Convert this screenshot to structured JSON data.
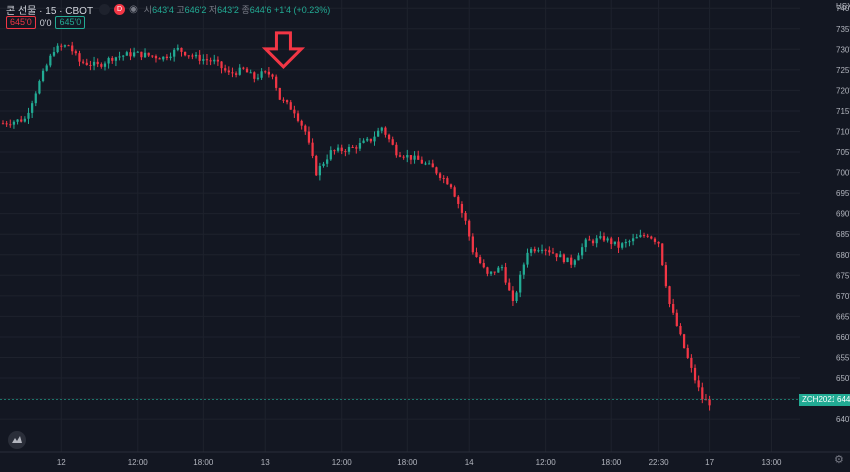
{
  "header": {
    "symbol": "콘 선물 · 15 · CBOT",
    "badge_d": "D",
    "ohlc": {
      "o_label": "시",
      "o": "643'4",
      "h_label": "고",
      "h": "646'2",
      "l_label": "저",
      "l": "643'2",
      "c_label": "종",
      "c": "644'6",
      "change": "+1'4 (+0.23%)"
    },
    "box_red": "645'0",
    "label_0": "0'0",
    "box_teal": "645'0"
  },
  "currency": "USX",
  "last_tag": {
    "symbol": "ZCH2021",
    "value": "644'"
  },
  "colors": {
    "bg": "#131722",
    "up": "#22ab94",
    "down": "#f23645",
    "grid": "#1e222d",
    "axis": "#b2b5be",
    "arrow": "#f23645"
  },
  "chart_data": {
    "type": "candlestick",
    "y_ticks": [
      "640'0",
      "645'0",
      "650'0",
      "655'0",
      "660'0",
      "665'0",
      "670'0",
      "675'0",
      "680'0",
      "685'0",
      "690'0",
      "695'0",
      "700'0",
      "705'0",
      "710'0",
      "715'0",
      "720'0",
      "725'0",
      "730'0",
      "735'0",
      "740'0"
    ],
    "y_range": [
      632,
      742
    ],
    "x_ticks": [
      "12",
      "12:00",
      "18:00",
      "13",
      "12:00",
      "18:00",
      "14",
      "12:00",
      "18:00",
      "22:30",
      "17",
      "13:00"
    ],
    "x_tick_index": [
      16,
      37,
      55,
      72,
      93,
      111,
      128,
      149,
      167,
      180,
      194,
      211
    ],
    "x_count": 219,
    "anchors": [
      [
        0,
        712
      ],
      [
        6,
        713
      ],
      [
        10,
        722
      ],
      [
        14,
        730
      ],
      [
        18,
        731
      ],
      [
        21,
        727
      ],
      [
        26,
        726
      ],
      [
        30,
        728
      ],
      [
        36,
        729
      ],
      [
        44,
        728
      ],
      [
        48,
        730
      ],
      [
        53,
        728
      ],
      [
        58,
        727
      ],
      [
        62,
        724
      ],
      [
        66,
        725
      ],
      [
        69,
        723
      ],
      [
        71,
        724
      ],
      [
        74,
        724
      ],
      [
        76,
        718
      ],
      [
        80,
        715
      ],
      [
        83,
        710
      ],
      [
        86,
        700
      ],
      [
        90,
        705
      ],
      [
        96,
        706
      ],
      [
        101,
        708
      ],
      [
        104,
        711
      ],
      [
        108,
        705
      ],
      [
        114,
        703
      ],
      [
        118,
        701
      ],
      [
        123,
        697
      ],
      [
        127,
        688
      ],
      [
        129,
        681
      ],
      [
        133,
        675
      ],
      [
        137,
        677
      ],
      [
        140,
        668
      ],
      [
        144,
        681
      ],
      [
        148,
        682
      ],
      [
        152,
        680
      ],
      [
        156,
        678
      ],
      [
        160,
        683
      ],
      [
        165,
        684
      ],
      [
        169,
        682
      ],
      [
        174,
        684
      ],
      [
        177,
        685
      ],
      [
        180,
        683
      ],
      [
        183,
        668
      ],
      [
        186,
        660
      ],
      [
        189,
        652
      ],
      [
        192,
        645
      ],
      [
        194,
        644
      ]
    ],
    "last_price": 644.75,
    "annotations": [
      {
        "type": "down-arrow",
        "x_index": 77,
        "price": 734
      }
    ]
  }
}
